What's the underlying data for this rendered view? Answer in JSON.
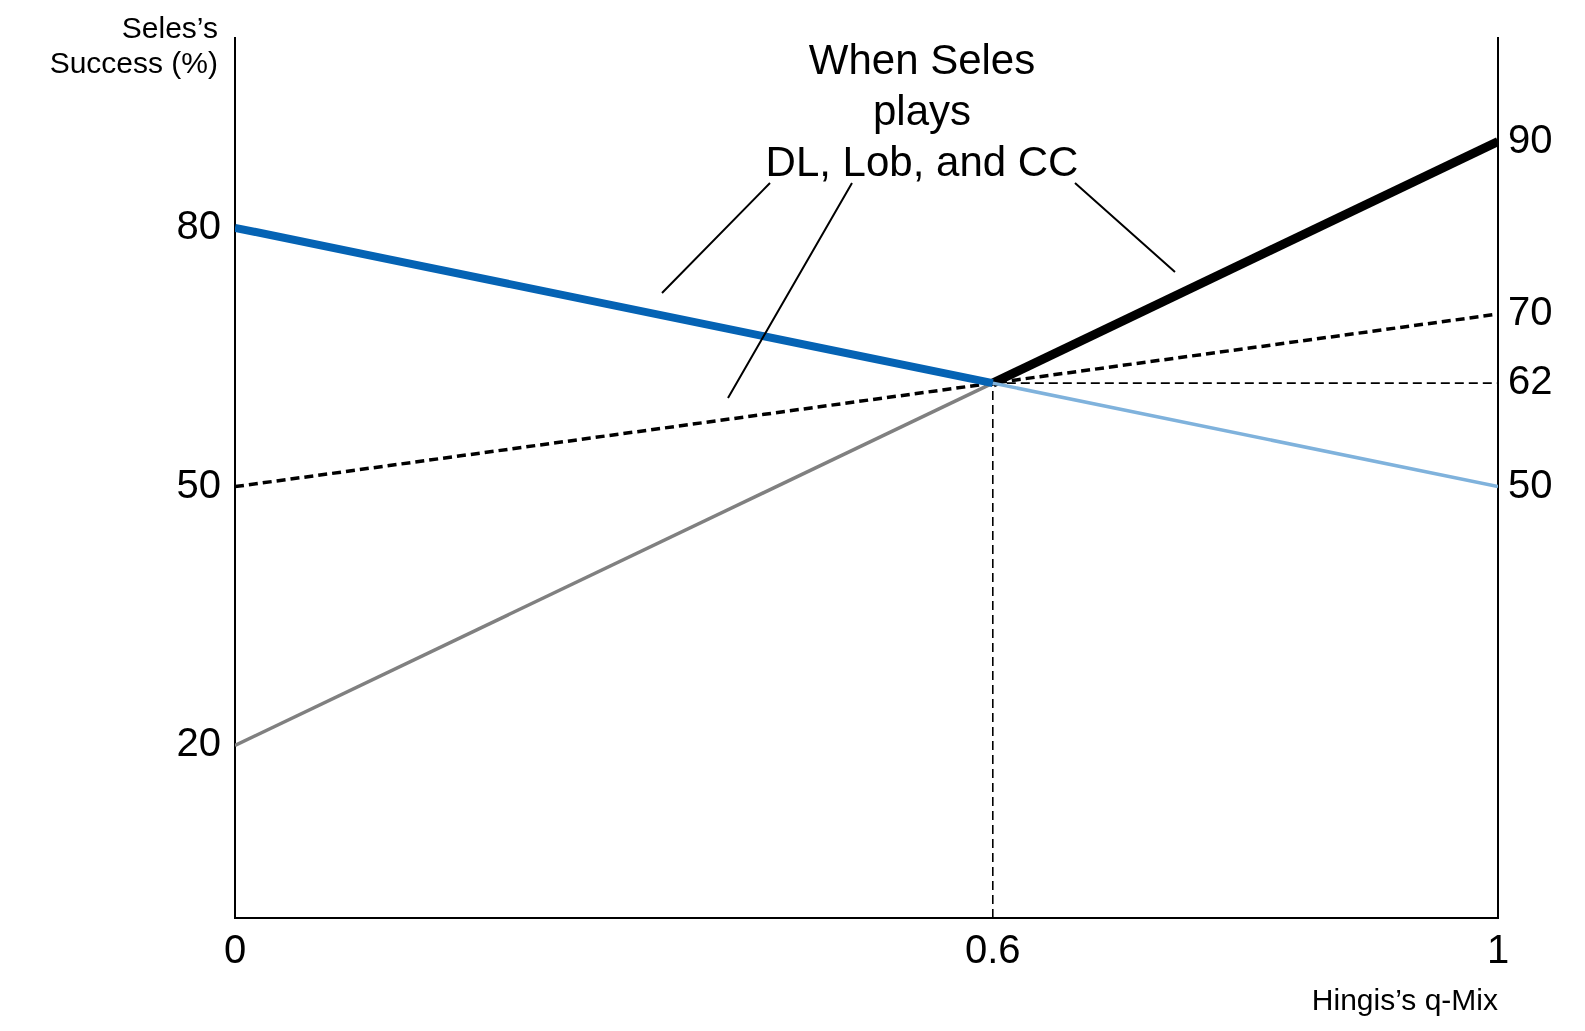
{
  "chart_data": {
    "type": "line",
    "xlabel": "Hingis’s q-Mix",
    "ylabel": "Seles’s Success (%)",
    "annotations": [
      "When Seles plays DL, Lob, and CC"
    ],
    "xlim": [
      0,
      1
    ],
    "xticks": [
      0,
      0.6,
      1
    ],
    "ylim": [
      0,
      102
    ],
    "yticks": [
      20,
      50,
      80
    ],
    "y2lim": [
      0,
      102
    ],
    "y2ticks": [
      50,
      62,
      70,
      90
    ],
    "grid": false,
    "legend": false,
    "series": [
      {
        "color": "#0563b4",
        "x": [
          0,
          0.6
        ],
        "values": [
          80,
          62
        ]
      },
      {
        "color": "#7fb2dc",
        "x": [
          0.6,
          1
        ],
        "values": [
          62,
          50
        ]
      },
      {
        "color": "#808080",
        "x": [
          0,
          0.6
        ],
        "values": [
          20,
          62
        ]
      },
      {
        "color": "#000000",
        "x": [
          0.6,
          1
        ],
        "values": [
          62,
          90
        ]
      },
      {
        "color": "#000000",
        "x": [
          0,
          1
        ],
        "values": [
          50,
          70
        ],
        "line_style": "dashed"
      },
      {
        "color": "#000000",
        "x": [
          0.6,
          0.6
        ],
        "values": [
          0,
          62
        ],
        "line_style": "dashed"
      },
      {
        "color": "#000000",
        "x": [
          0.6,
          1
        ],
        "values": [
          62,
          62
        ],
        "line_style": "dashed"
      }
    ]
  }
}
